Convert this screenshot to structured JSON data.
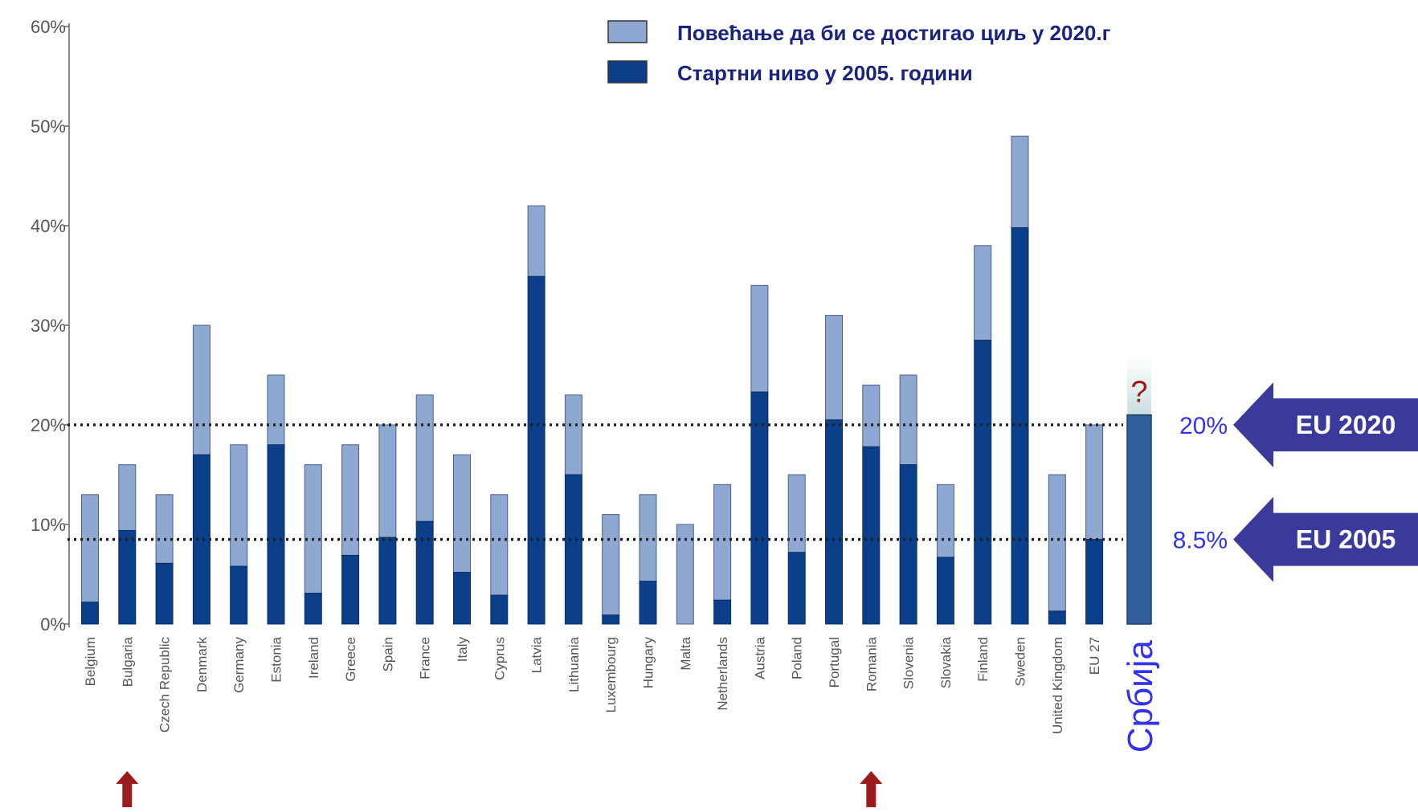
{
  "chart_data": {
    "type": "bar",
    "stacked": true,
    "ylim": [
      0,
      60
    ],
    "yticks": [
      "0%",
      "10%",
      "20%",
      "30%",
      "40%",
      "50%",
      "60%"
    ],
    "categories": [
      "Belgium",
      "Bulgaria",
      "Czech Republic",
      "Denmark",
      "Germany",
      "Estonia",
      "Ireland",
      "Greece",
      "Spain",
      "France",
      "Italy",
      "Cyprus",
      "Latvia",
      "Lithuania",
      "Luxembourg",
      "Hungary",
      "Malta",
      "Netherlands",
      "Austria",
      "Poland",
      "Portugal",
      "Romania",
      "Slovenia",
      "Slovakia",
      "Finland",
      "Sweden",
      "United Kingdom",
      "EU 27"
    ],
    "series": [
      {
        "name": "Стартни ниво у 2005. години",
        "color": "#0b3f8a",
        "values": [
          2.2,
          9.4,
          6.1,
          17.0,
          5.8,
          18.0,
          3.1,
          6.9,
          8.7,
          10.3,
          5.2,
          2.9,
          34.9,
          15.0,
          0.9,
          4.3,
          0.0,
          2.4,
          23.3,
          7.2,
          20.5,
          17.8,
          16.0,
          6.7,
          28.5,
          39.8,
          1.3,
          8.5
        ]
      },
      {
        "name": "Повећање да би се достигао циљ у 2020.г",
        "color": "#8ea8d2",
        "values": [
          10.8,
          6.6,
          6.9,
          13.0,
          12.2,
          7.0,
          12.9,
          11.1,
          11.3,
          12.7,
          11.8,
          10.1,
          7.1,
          8.0,
          10.1,
          8.7,
          10.0,
          11.6,
          10.7,
          7.8,
          10.5,
          6.2,
          9.0,
          7.3,
          9.5,
          9.2,
          13.7,
          11.5
        ]
      }
    ],
    "reference_lines": [
      {
        "value": 20,
        "label": "20%",
        "arrow_label": "EU 2020"
      },
      {
        "value": 8.5,
        "label": "8.5%",
        "arrow_label": "EU 2005"
      }
    ],
    "extra_bar": {
      "label": "Србија",
      "value": 21,
      "question_mark": "?",
      "color": "#2f5f98"
    },
    "highlight_arrows": [
      "Bulgaria",
      "Romania"
    ],
    "highlight_arrow_color": "#9b1c1c",
    "grid": false,
    "legend_position": "top-right"
  }
}
